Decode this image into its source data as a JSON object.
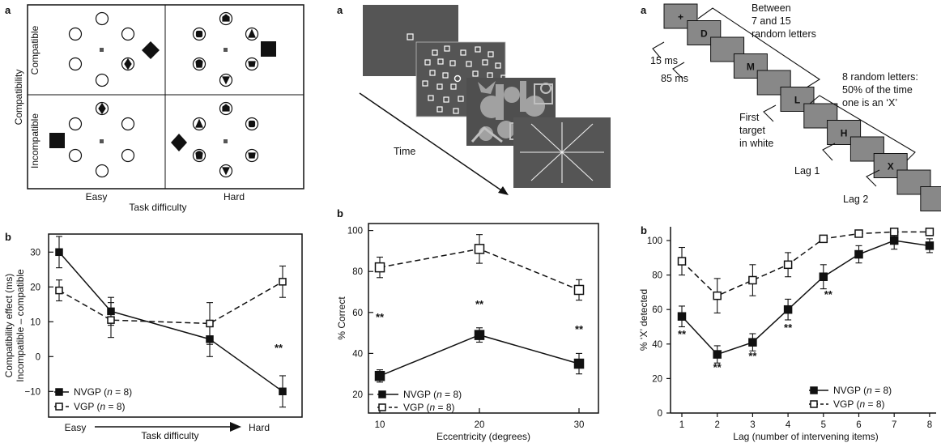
{
  "figure_left": {
    "panel_a_label": "a",
    "compat_axis_label": "Compatibility",
    "row_labels": [
      "Compatible",
      "Incompatible"
    ],
    "col_labels": [
      "Easy",
      "Hard"
    ],
    "x_axis_label": "Task difficulty",
    "panel_b_label": "b",
    "y_label_line1": "Compatibility effect (ms)",
    "y_label_line2": "Incompatible – compatible",
    "x_start": "Easy",
    "x_end": "Hard",
    "x_arrow_label": "Task difficulty",
    "significance": "**"
  },
  "figure_middle": {
    "panel_a_label": "a",
    "time_label": "Time",
    "panel_b_label": "b",
    "significance": [
      "**",
      "**",
      "**"
    ]
  },
  "figure_right": {
    "panel_a_label": "a",
    "stream_letters": [
      "+",
      "D",
      "M",
      "L",
      "H",
      "X"
    ],
    "ann_between": [
      "Between",
      "7 and 15",
      "random letters"
    ],
    "ann_15ms": "15 ms",
    "ann_85ms": "85 ms",
    "ann_first_target": [
      "First",
      "target",
      "in white"
    ],
    "ann_random_letters": [
      "8 random letters:",
      "50% of the time",
      "one is an ‘X’"
    ],
    "ann_lag1": "Lag 1",
    "ann_lag2": "Lag 2",
    "panel_b_label": "b",
    "significance": [
      "**",
      "**",
      "**",
      "**",
      "**"
    ]
  },
  "chart_data": [
    {
      "type": "line",
      "categories": [
        "Easy compatible",
        "Easy incompatible",
        "Hard compatible",
        "Hard incompatible"
      ],
      "series": [
        {
          "name": "NVGP (n = 8)",
          "values": [
            30,
            13,
            5,
            -10
          ],
          "error": [
            4.5,
            4,
            5,
            4.5
          ],
          "marker": "filled-square",
          "line": "solid"
        },
        {
          "name": "VGP (n = 8)",
          "values": [
            19,
            10.5,
            9.5,
            21.5
          ],
          "error": [
            3,
            5,
            6,
            4.5
          ],
          "marker": "open-square",
          "line": "dashed"
        }
      ],
      "xlabel": "Task difficulty",
      "ylabel": "Compatibility effect (ms) Incompatible – compatible",
      "yticks": [
        -10,
        0,
        10,
        20,
        30
      ],
      "ylim": [
        -15,
        35
      ],
      "legend": "bottom-left",
      "grid": false
    },
    {
      "type": "line",
      "x": [
        10,
        20,
        30
      ],
      "series": [
        {
          "name": "NVGP (n = 8)",
          "values": [
            29,
            49,
            35
          ],
          "error": [
            3,
            3.5,
            5
          ],
          "marker": "filled-square",
          "line": "solid"
        },
        {
          "name": "VGP (n = 8)",
          "values": [
            82,
            91,
            71
          ],
          "error": [
            5,
            7,
            5
          ],
          "marker": "open-square",
          "line": "dashed"
        }
      ],
      "xlabel": "Eccentricity (degrees)",
      "ylabel": "% Correct",
      "xticks": [
        10,
        20,
        30
      ],
      "yticks": [
        20,
        40,
        60,
        80,
        100
      ],
      "ylim": [
        15,
        100
      ],
      "legend": "bottom-right",
      "grid": false
    },
    {
      "type": "line",
      "x": [
        1,
        2,
        3,
        4,
        5,
        6,
        7,
        8
      ],
      "series": [
        {
          "name": "NVGP (n = 8)",
          "values": [
            56,
            34,
            41,
            60,
            79,
            92,
            100,
            97
          ],
          "error": [
            6,
            5,
            5,
            6,
            7,
            5,
            5,
            4
          ],
          "marker": "filled-square",
          "line": "solid"
        },
        {
          "name": "VGP (n = 8)",
          "values": [
            88,
            68,
            77,
            86,
            101,
            104,
            105,
            105
          ],
          "error": [
            8,
            10,
            9,
            7,
            0,
            2,
            2,
            2
          ],
          "marker": "open-square",
          "line": "dashed"
        }
      ],
      "xlabel": "Lag (number of intervening items)",
      "ylabel": "% ‘X’ detected",
      "xticks": [
        1,
        2,
        3,
        4,
        5,
        6,
        7,
        8
      ],
      "yticks": [
        0,
        20,
        40,
        60,
        80,
        100
      ],
      "ylim": [
        0,
        108
      ],
      "legend": "bottom-right",
      "grid": false
    }
  ]
}
